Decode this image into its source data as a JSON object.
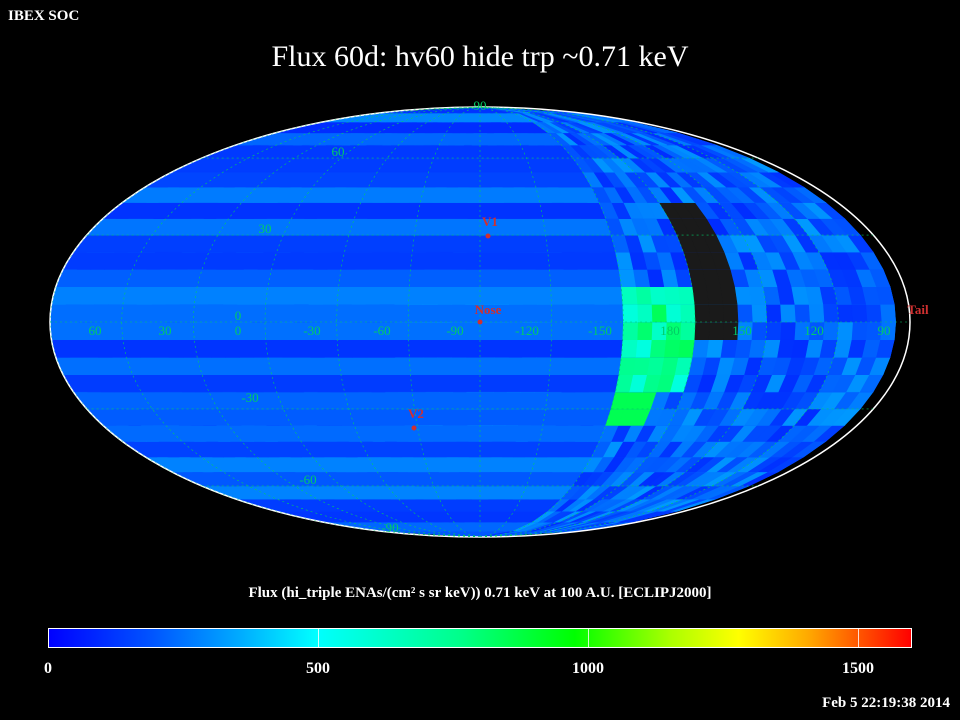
{
  "header": {
    "org": "IBEX SOC",
    "title": "Flux   60d: hv60 hide trp ~0.71 keV"
  },
  "colorbar": {
    "title": "Flux (hi_triple ENAs/(cm² s sr keV))  0.71 keV at 100 A.U. [ECLIPJ2000]",
    "tick_labels": [
      "0",
      "500",
      "1000",
      "1500"
    ],
    "min": 0,
    "max": 1600
  },
  "timestamp": "Feb  5 22:19:38 2014",
  "map": {
    "projection": "Mollweide",
    "lat_labels": [
      "90",
      "60",
      "30",
      "0",
      "-30",
      "-60",
      "-90"
    ],
    "lon_labels": [
      "60",
      "30",
      "0",
      "-30",
      "-60",
      "-90",
      "-120",
      "-150",
      "180",
      "150",
      "120",
      "90"
    ],
    "markers": [
      {
        "label": "V1",
        "lon": -95,
        "lat": 34,
        "color": "#d03030"
      },
      {
        "label": "Nose",
        "lon": -105,
        "lat": 0,
        "color": "#d03030"
      },
      {
        "label": "V2",
        "lon": -70,
        "lat": -35,
        "color": "#d03030"
      }
    ],
    "tail_label": "Tail",
    "grid_color": "#00cc66",
    "no_data_color": "#1a1a1a"
  },
  "chart_data": {
    "type": "heatmap",
    "title": "Flux   60d: hv60 hide trp ~0.71 keV",
    "colorbar_label": "Flux (hi_triple ENAs/(cm² s sr keV))  0.71 keV at 100 A.U. [ECLIPJ2000]",
    "value_range": [
      0,
      1600
    ],
    "typical_flux": 200,
    "high_flux_regions": [
      {
        "description": "ribbon / tail-side enhancement near lon 150-180",
        "approx_value": 800
      },
      {
        "description": "patch near lon 165, lat -30",
        "approx_value": 900
      }
    ]
  }
}
